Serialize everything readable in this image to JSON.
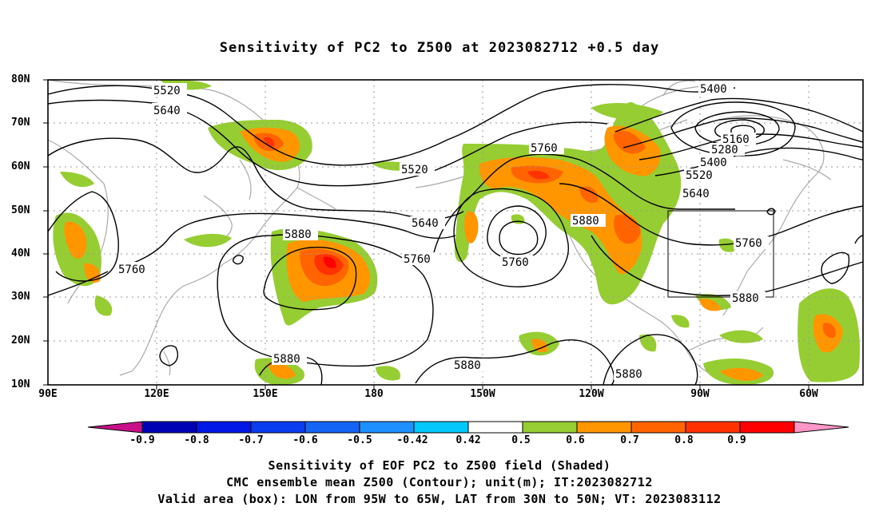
{
  "title": "Sensitivity of PC2 to Z500 at 2023082712 +0.5 day",
  "lat_labels": [
    "80N",
    "70N",
    "60N",
    "50N",
    "40N",
    "30N",
    "20N",
    "10N"
  ],
  "lon_labels": [
    "90E",
    "120E",
    "150E",
    "180",
    "150W",
    "120W",
    "90W",
    "60W"
  ],
  "contour_labels": [
    {
      "text": "5520"
    },
    {
      "text": "5640"
    },
    {
      "text": "5400"
    },
    {
      "text": "5160"
    },
    {
      "text": "5280"
    },
    {
      "text": "5400"
    },
    {
      "text": "5520"
    },
    {
      "text": "5640"
    },
    {
      "text": "5760"
    },
    {
      "text": "5520"
    },
    {
      "text": "5880"
    },
    {
      "text": "5640"
    },
    {
      "text": "5760"
    },
    {
      "text": "5760"
    },
    {
      "text": "5760"
    },
    {
      "text": "5880"
    },
    {
      "text": "5760"
    },
    {
      "text": "5880"
    },
    {
      "text": "5880"
    },
    {
      "text": "5880"
    },
    {
      "text": "5880"
    }
  ],
  "colorbar": {
    "labels": [
      "-0.9",
      "-0.8",
      "-0.7",
      "-0.6",
      "-0.5",
      "-0.42",
      "0.42",
      "0.5",
      "0.6",
      "0.7",
      "0.8",
      "0.9"
    ],
    "colors": [
      "#c8108a",
      "#0000b4",
      "#0018e6",
      "#0a3cf0",
      "#1464f5",
      "#1e90ff",
      "#00c8fa",
      "#ffffff",
      "#96cd32",
      "#ff9600",
      "#ff6400",
      "#ff3200",
      "#ff0000",
      "#ff96c8"
    ]
  },
  "valid_box": {
    "lon_from": "95W",
    "lon_to": "65W",
    "lat_from": "30N",
    "lat_to": "50N"
  },
  "footer": {
    "line1": "Sensitivity of EOF PC2 to Z500 field (Shaded)",
    "line2": "CMC ensemble mean Z500 (Contour); unit(m); IT:2023082712",
    "line3": "Valid area (box): LON from 95W to 65W, LAT from 30N to 50N; VT: 2023083112"
  }
}
